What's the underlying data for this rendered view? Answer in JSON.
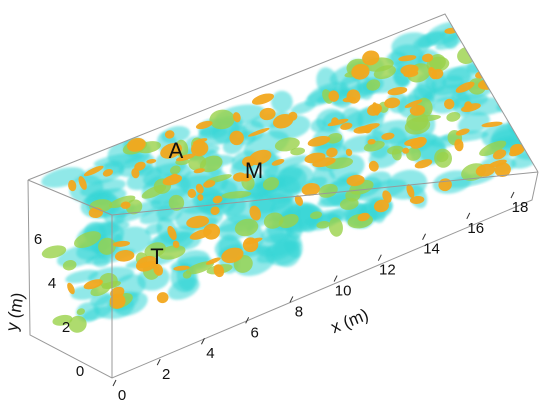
{
  "x_axis": {
    "label": "x (m)",
    "ticks": [
      "0",
      "2",
      "4",
      "6",
      "8",
      "10",
      "12",
      "14",
      "16",
      "18"
    ]
  },
  "y_axis": {
    "label": "y (m)",
    "ticks": [
      "0",
      "2",
      "4",
      "6"
    ]
  },
  "annotations": [
    "A",
    "M",
    "T"
  ]
}
